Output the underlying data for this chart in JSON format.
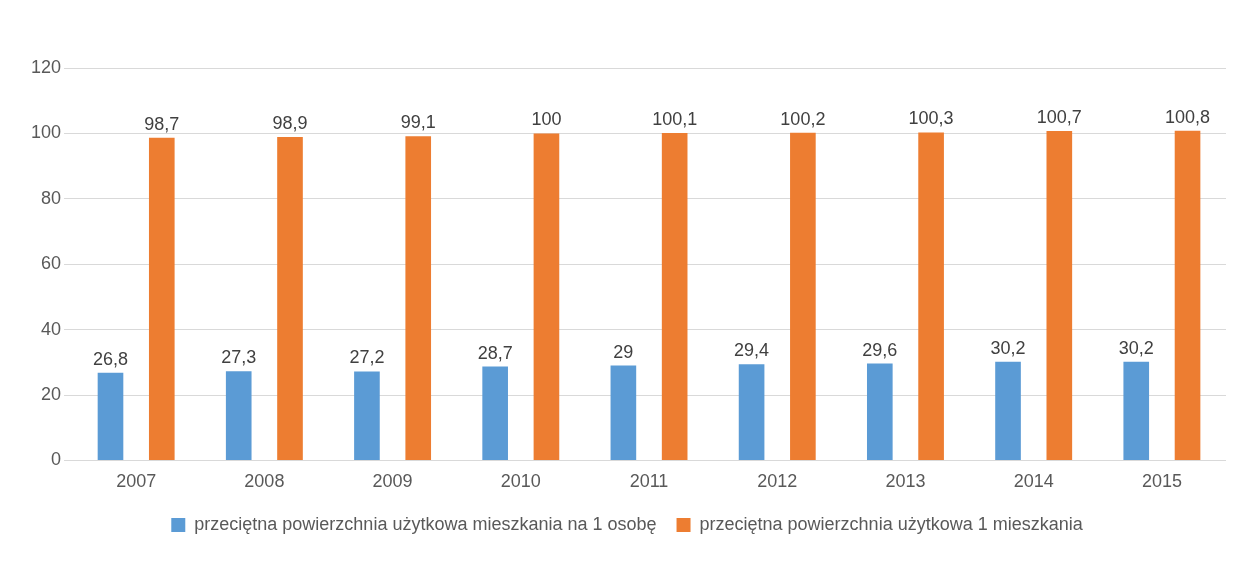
{
  "chart_data": {
    "type": "bar",
    "categories": [
      "2007",
      "2008",
      "2009",
      "2010",
      "2011",
      "2012",
      "2013",
      "2014",
      "2015"
    ],
    "series": [
      {
        "name": "przeciętna powierzchnia użytkowa mieszkania na 1 osobę",
        "color": "#5b9bd5",
        "values": [
          26.8,
          27.3,
          27.2,
          28.7,
          29,
          29.4,
          29.6,
          30.2,
          30.2
        ],
        "value_labels": [
          "26,8",
          "27,3",
          "27,2",
          "28,7",
          "29",
          "29,4",
          "29,6",
          "30,2",
          "30,2"
        ]
      },
      {
        "name": "przeciętna powierzchnia użytkowa 1 mieszkania",
        "color": "#ed7d31",
        "values": [
          98.7,
          98.9,
          99.1,
          100,
          100.1,
          100.2,
          100.3,
          100.7,
          100.8
        ],
        "value_labels": [
          "98,7",
          "98,9",
          "99,1",
          "100",
          "100,1",
          "100,2",
          "100,3",
          "100,7",
          "100,8"
        ]
      }
    ],
    "ylim": [
      0,
      120
    ],
    "yticks": [
      0,
      20,
      40,
      60,
      80,
      100,
      120
    ],
    "grid": "y",
    "legend": "bottom"
  }
}
